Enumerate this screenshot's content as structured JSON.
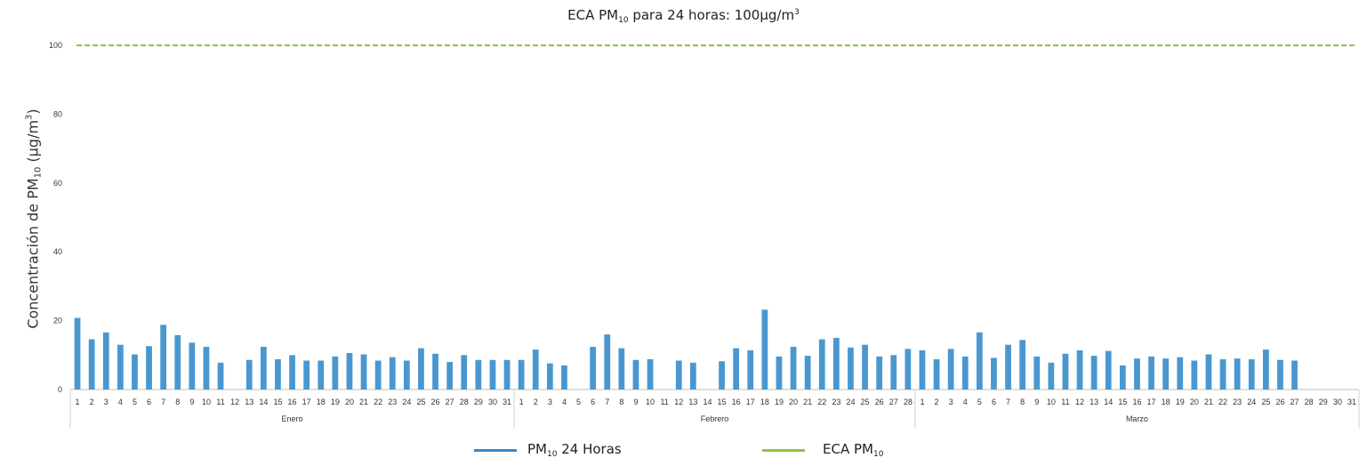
{
  "chart_data": {
    "type": "bar",
    "title": {
      "prefix": "ECA PM",
      "sub": "10",
      "suffix": " para 24 horas: 100µg/m",
      "sup": "3"
    },
    "ylabel": {
      "prefix": "Concentración de PM",
      "sub": "10",
      "mid": " (µg/m",
      "sup": "3",
      "suffix": ")"
    },
    "ylim": [
      0,
      100
    ],
    "yticks": [
      0,
      20,
      40,
      60,
      80,
      100
    ],
    "grid": false,
    "legend_position": "bottom",
    "months": [
      {
        "name": "Enero",
        "days": [
          1,
          2,
          3,
          4,
          5,
          6,
          7,
          8,
          9,
          10,
          11,
          12,
          13,
          14,
          15,
          16,
          17,
          18,
          19,
          20,
          21,
          22,
          23,
          24,
          25,
          26,
          27,
          28,
          29,
          30,
          31
        ],
        "values": [
          20.8,
          14.6,
          16.6,
          13.0,
          10.2,
          12.6,
          18.8,
          15.8,
          13.6,
          12.4,
          7.8,
          null,
          8.6,
          12.4,
          8.8,
          10.0,
          8.4,
          8.4,
          9.6,
          10.6,
          10.2,
          8.4,
          9.4,
          8.4,
          12.0,
          10.4,
          8.0,
          10.0,
          8.6,
          8.6,
          8.6
        ]
      },
      {
        "name": "Febrero",
        "days": [
          1,
          2,
          3,
          4,
          5,
          6,
          7,
          8,
          9,
          10,
          11,
          12,
          13,
          14,
          15,
          16,
          17,
          18,
          19,
          20,
          21,
          22,
          23,
          24,
          25,
          26,
          27,
          28
        ],
        "values": [
          8.6,
          11.6,
          7.6,
          7.0,
          null,
          12.4,
          16.0,
          12.0,
          8.6,
          8.8,
          null,
          8.4,
          7.8,
          null,
          8.2,
          12.0,
          11.4,
          23.2,
          9.6,
          12.4,
          9.8,
          14.6,
          15.0,
          12.2,
          13.0,
          9.6,
          10.0,
          11.8
        ]
      },
      {
        "name": "Marzo",
        "days": [
          1,
          2,
          3,
          4,
          5,
          6,
          7,
          8,
          9,
          10,
          11,
          12,
          13,
          14,
          15,
          16,
          17,
          18,
          19,
          20,
          21,
          22,
          23,
          24,
          25,
          26,
          27,
          28,
          29,
          30,
          31
        ],
        "values": [
          11.4,
          8.8,
          11.8,
          9.6,
          16.6,
          9.2,
          13.0,
          14.4,
          9.6,
          7.8,
          10.4,
          11.4,
          9.8,
          11.2,
          7.0,
          9.0,
          9.6,
          9.0,
          9.4,
          8.4,
          10.2,
          8.8,
          9.0,
          8.8,
          11.6,
          8.6,
          8.4,
          null,
          null,
          null,
          null
        ]
      }
    ],
    "series": [
      {
        "name_prefix": "PM",
        "name_sub": "10",
        "name_suffix": " 24 Horas",
        "type": "bar",
        "color": "#4a97d0"
      },
      {
        "name_prefix": "ECA PM",
        "name_sub": "10",
        "name_suffix": "",
        "type": "line",
        "value": 100,
        "color": "#8dc63f"
      }
    ]
  }
}
